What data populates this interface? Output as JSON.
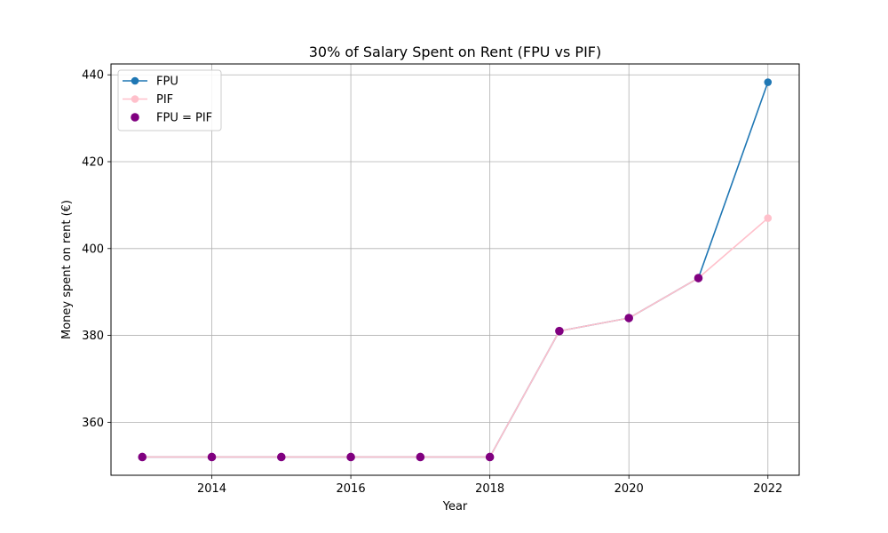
{
  "chart_data": {
    "type": "line",
    "title": "30% of Salary Spent on Rent (FPU vs PIF)",
    "xlabel": "Year",
    "ylabel": "Money spent on rent (€)",
    "xlim": [
      2012.55,
      2022.45
    ],
    "ylim": [
      347.8,
      442.5
    ],
    "x_ticks": [
      2014,
      2016,
      2018,
      2020,
      2022
    ],
    "y_ticks": [
      360,
      380,
      400,
      420,
      440
    ],
    "grid": true,
    "legend_position": "top-left",
    "x": [
      2013,
      2014,
      2015,
      2016,
      2017,
      2018,
      2019,
      2020,
      2021,
      2022
    ],
    "series": [
      {
        "name": "FPU",
        "kind": "line-marker",
        "color": "#1f77b4",
        "values": [
          352,
          352,
          352,
          352,
          352,
          352,
          381,
          384,
          393.2,
          438.3
        ]
      },
      {
        "name": "PIF",
        "kind": "line-marker",
        "color": "#ffc0cb",
        "values": [
          352,
          352,
          352,
          352,
          352,
          352,
          381,
          384,
          393.2,
          407
        ]
      },
      {
        "name": "FPU = PIF",
        "kind": "scatter",
        "color": "#800080",
        "x": [
          2013,
          2014,
          2015,
          2016,
          2017,
          2018,
          2019,
          2020,
          2021
        ],
        "values": [
          352,
          352,
          352,
          352,
          352,
          352,
          381,
          384,
          393.2
        ]
      }
    ]
  }
}
